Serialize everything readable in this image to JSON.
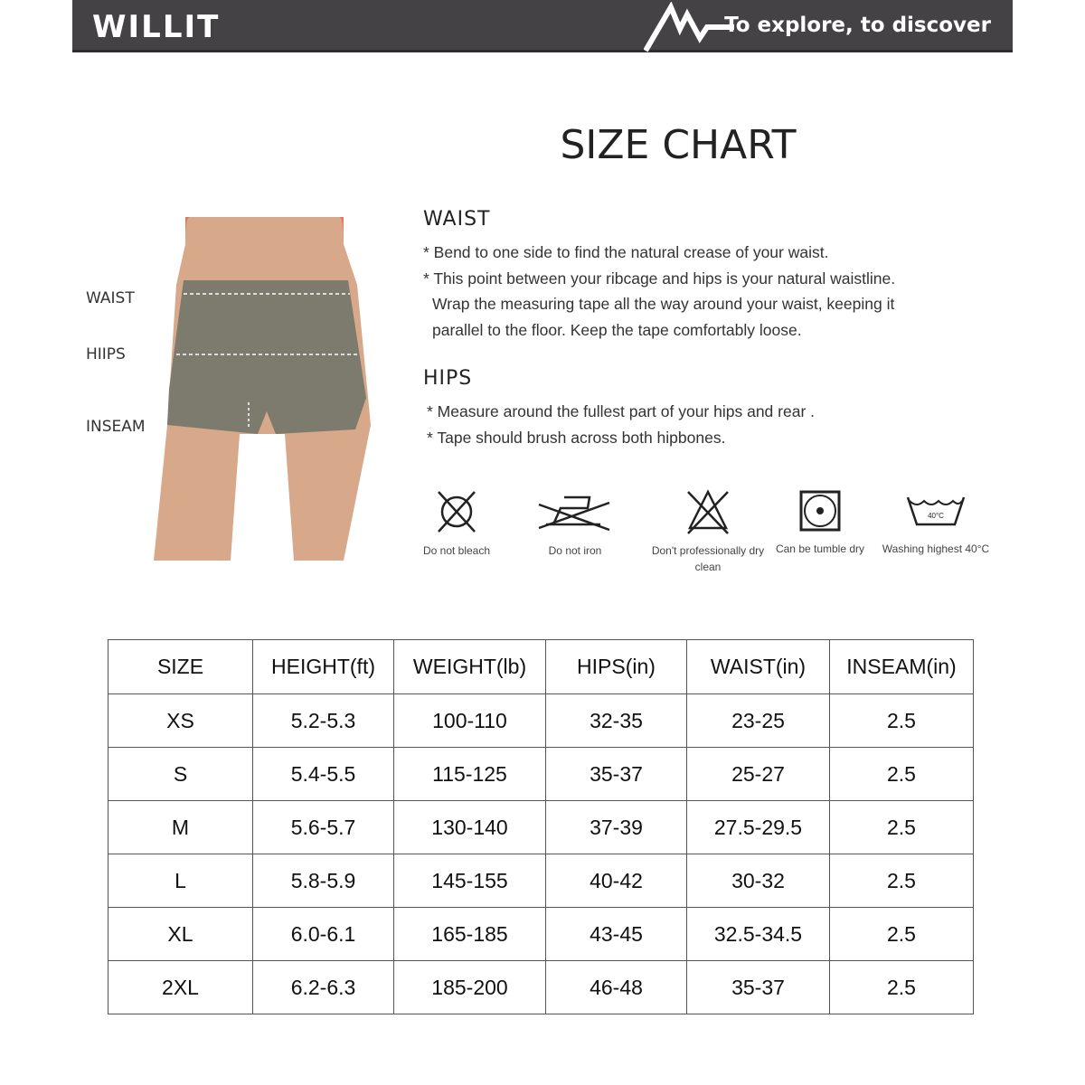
{
  "header": {
    "brand": "WILLIT",
    "tagline": "To explore, to discover",
    "background": "#454245"
  },
  "title": "SIZE CHART",
  "figure_labels": [
    "WAIST",
    "HIIPS",
    "INSEAM"
  ],
  "waist": {
    "heading": "WAIST",
    "lines": [
      "* Bend to one side to find the natural crease of your waist.",
      "* This point between your ribcage and hips is your natural waistline.",
      "  Wrap the measuring tape all the way around your waist, keeping it",
      "  parallel to the floor. Keep the tape comfortably loose."
    ]
  },
  "hips": {
    "heading": "HIPS",
    "lines": [
      "* Measure around the fullest part of your hips and rear .",
      "* Tape should brush across both hipbones."
    ]
  },
  "care": [
    {
      "icon": "no-bleach-icon",
      "label": "Do not bleach"
    },
    {
      "icon": "no-iron-icon",
      "label": "Do not iron"
    },
    {
      "icon": "no-dry-clean-icon",
      "label": "Don't professionally dry clean"
    },
    {
      "icon": "tumble-dry-icon",
      "label": "Can be tumble dry"
    },
    {
      "icon": "wash-40-icon",
      "label": "Washing highest 40°C",
      "temp": "40°C"
    }
  ],
  "table": {
    "headers": [
      "SIZE",
      "HEIGHT(ft)",
      "WEIGHT(lb)",
      "HIPS(in)",
      "WAIST(in)",
      "INSEAM(in)"
    ],
    "rows": [
      [
        "XS",
        "5.2-5.3",
        "100-110",
        "32-35",
        "23-25",
        "2.5"
      ],
      [
        "S",
        "5.4-5.5",
        "115-125",
        "35-37",
        "25-27",
        "2.5"
      ],
      [
        "M",
        "5.6-5.7",
        "130-140",
        "37-39",
        "27.5-29.5",
        "2.5"
      ],
      [
        "L",
        "5.8-5.9",
        "145-155",
        "40-42",
        "30-32",
        "2.5"
      ],
      [
        "XL",
        "6.0-6.1",
        "165-185",
        "43-45",
        "32.5-34.5",
        "2.5"
      ],
      [
        "2XL",
        "6.2-6.3",
        "185-200",
        "46-48",
        "35-37",
        "2.5"
      ]
    ]
  }
}
